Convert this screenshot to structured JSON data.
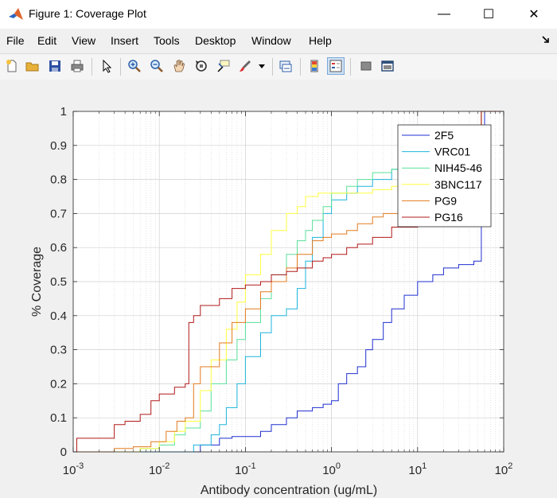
{
  "window": {
    "title": "Figure 1: Coverage Plot",
    "minimize": "—",
    "maximize": "☐",
    "close": "✕"
  },
  "menu": [
    "File",
    "Edit",
    "View",
    "Insert",
    "Tools",
    "Desktop",
    "Window",
    "Help"
  ],
  "toolbar_icons": [
    "new-figure-icon",
    "open-file-icon",
    "save-icon",
    "print-icon",
    "pointer-icon",
    "zoom-in-icon",
    "zoom-out-icon",
    "pan-icon",
    "rotate-3d-icon",
    "data-cursor-icon",
    "brush-icon",
    "link-plot-icon",
    "colorbar-icon",
    "legend-icon",
    "hide-plot-tools-icon",
    "show-plot-tools-icon"
  ],
  "chart_data": {
    "type": "line",
    "title": "",
    "xlabel": "Antibody concentration (ug/mL)",
    "ylabel": "% Coverage",
    "xscale": "log",
    "xlim": [
      0.001,
      100
    ],
    "ylim": [
      0,
      1
    ],
    "xticks": [
      {
        "value": 0.001,
        "base": "10",
        "exp": "-3"
      },
      {
        "value": 0.01,
        "base": "10",
        "exp": "-2"
      },
      {
        "value": 0.1,
        "base": "10",
        "exp": "-1"
      },
      {
        "value": 1,
        "base": "10",
        "exp": "0"
      },
      {
        "value": 10,
        "base": "10",
        "exp": "1"
      },
      {
        "value": 100,
        "base": "10",
        "exp": "2"
      }
    ],
    "yticks": [
      "0",
      "0.1",
      "0.2",
      "0.3",
      "0.4",
      "0.5",
      "0.6",
      "0.7",
      "0.8",
      "0.9",
      "1"
    ],
    "grid": true,
    "legend_position": "top-right",
    "series": [
      {
        "name": "2F5",
        "color": "#1f2fd0",
        "points": [
          [
            0.001,
            0
          ],
          [
            0.02,
            0
          ],
          [
            0.03,
            0.02
          ],
          [
            0.05,
            0.04
          ],
          [
            0.07,
            0.045
          ],
          [
            0.13,
            0.045
          ],
          [
            0.15,
            0.06
          ],
          [
            0.2,
            0.08
          ],
          [
            0.3,
            0.1
          ],
          [
            0.4,
            0.12
          ],
          [
            0.6,
            0.13
          ],
          [
            0.8,
            0.14
          ],
          [
            1.0,
            0.15
          ],
          [
            1.2,
            0.2
          ],
          [
            1.5,
            0.23
          ],
          [
            2,
            0.25
          ],
          [
            2.5,
            0.3
          ],
          [
            3,
            0.33
          ],
          [
            4,
            0.38
          ],
          [
            5,
            0.42
          ],
          [
            7,
            0.46
          ],
          [
            10,
            0.5
          ],
          [
            15,
            0.52
          ],
          [
            20,
            0.54
          ],
          [
            30,
            0.55
          ],
          [
            45,
            0.56
          ],
          [
            50,
            0.56
          ],
          [
            55,
            0.8
          ],
          [
            60,
            1
          ],
          [
            100,
            1
          ]
        ]
      },
      {
        "name": "VRC01",
        "color": "#1db4dc",
        "points": [
          [
            0.001,
            0
          ],
          [
            0.015,
            0
          ],
          [
            0.025,
            0.02
          ],
          [
            0.04,
            0.05
          ],
          [
            0.05,
            0.08
          ],
          [
            0.06,
            0.13
          ],
          [
            0.08,
            0.2
          ],
          [
            0.1,
            0.28
          ],
          [
            0.15,
            0.35
          ],
          [
            0.2,
            0.4
          ],
          [
            0.3,
            0.42
          ],
          [
            0.4,
            0.48
          ],
          [
            0.5,
            0.56
          ],
          [
            0.6,
            0.63
          ],
          [
            0.8,
            0.7
          ],
          [
            1,
            0.74
          ],
          [
            1.5,
            0.76
          ],
          [
            2,
            0.78
          ],
          [
            3,
            0.8
          ],
          [
            5,
            0.83
          ],
          [
            7,
            0.85
          ],
          [
            10,
            0.86
          ],
          [
            20,
            0.87
          ],
          [
            30,
            0.88
          ],
          [
            50,
            0.88
          ],
          [
            55,
            1
          ],
          [
            100,
            1
          ]
        ]
      },
      {
        "name": "NIH45-46",
        "color": "#58e09a",
        "points": [
          [
            0.001,
            0
          ],
          [
            0.004,
            0
          ],
          [
            0.006,
            0.01
          ],
          [
            0.01,
            0.02
          ],
          [
            0.015,
            0.05
          ],
          [
            0.02,
            0.07
          ],
          [
            0.03,
            0.12
          ],
          [
            0.04,
            0.2
          ],
          [
            0.06,
            0.27
          ],
          [
            0.08,
            0.33
          ],
          [
            0.1,
            0.38
          ],
          [
            0.15,
            0.45
          ],
          [
            0.2,
            0.52
          ],
          [
            0.3,
            0.58
          ],
          [
            0.4,
            0.62
          ],
          [
            0.5,
            0.65
          ],
          [
            0.6,
            0.68
          ],
          [
            0.8,
            0.72
          ],
          [
            1,
            0.76
          ],
          [
            1.5,
            0.78
          ],
          [
            2,
            0.8
          ],
          [
            3,
            0.82
          ],
          [
            5,
            0.83
          ],
          [
            10,
            0.84
          ],
          [
            20,
            0.84
          ],
          [
            50,
            0.85
          ],
          [
            55,
            1
          ],
          [
            100,
            1
          ]
        ]
      },
      {
        "name": "3BNC117",
        "color": "#ffff40",
        "points": [
          [
            0.001,
            0
          ],
          [
            0.004,
            0
          ],
          [
            0.006,
            0.01
          ],
          [
            0.01,
            0.03
          ],
          [
            0.015,
            0.06
          ],
          [
            0.02,
            0.09
          ],
          [
            0.03,
            0.18
          ],
          [
            0.04,
            0.27
          ],
          [
            0.06,
            0.36
          ],
          [
            0.08,
            0.44
          ],
          [
            0.1,
            0.52
          ],
          [
            0.15,
            0.58
          ],
          [
            0.2,
            0.65
          ],
          [
            0.3,
            0.7
          ],
          [
            0.4,
            0.72
          ],
          [
            0.5,
            0.75
          ],
          [
            0.7,
            0.76
          ],
          [
            1,
            0.76
          ],
          [
            2,
            0.76
          ],
          [
            3,
            0.77
          ],
          [
            5,
            0.78
          ],
          [
            10,
            0.78
          ],
          [
            20,
            0.78
          ],
          [
            50,
            0.78
          ],
          [
            55,
            1
          ],
          [
            100,
            1
          ]
        ]
      },
      {
        "name": "PG9",
        "color": "#e37a1e",
        "points": [
          [
            0.001,
            0
          ],
          [
            0.003,
            0.01
          ],
          [
            0.005,
            0.015
          ],
          [
            0.008,
            0.03
          ],
          [
            0.012,
            0.06
          ],
          [
            0.016,
            0.09
          ],
          [
            0.02,
            0.1
          ],
          [
            0.025,
            0.2
          ],
          [
            0.03,
            0.25
          ],
          [
            0.05,
            0.32
          ],
          [
            0.07,
            0.38
          ],
          [
            0.1,
            0.42
          ],
          [
            0.15,
            0.47
          ],
          [
            0.2,
            0.5
          ],
          [
            0.3,
            0.54
          ],
          [
            0.4,
            0.58
          ],
          [
            0.6,
            0.62
          ],
          [
            0.8,
            0.63
          ],
          [
            1,
            0.64
          ],
          [
            1.5,
            0.65
          ],
          [
            2,
            0.67
          ],
          [
            3,
            0.69
          ],
          [
            4,
            0.7
          ],
          [
            6,
            0.72
          ],
          [
            10,
            0.72
          ],
          [
            20,
            0.73
          ],
          [
            50,
            0.73
          ],
          [
            55,
            1
          ],
          [
            100,
            1
          ]
        ]
      },
      {
        "name": "PG16",
        "color": "#b01818",
        "points": [
          [
            0.001,
            0
          ],
          [
            0.0011,
            0.04
          ],
          [
            0.002,
            0.04
          ],
          [
            0.003,
            0.08
          ],
          [
            0.004,
            0.09
          ],
          [
            0.006,
            0.11
          ],
          [
            0.008,
            0.15
          ],
          [
            0.01,
            0.17
          ],
          [
            0.015,
            0.19
          ],
          [
            0.02,
            0.2
          ],
          [
            0.022,
            0.38
          ],
          [
            0.025,
            0.4
          ],
          [
            0.03,
            0.43
          ],
          [
            0.05,
            0.45
          ],
          [
            0.07,
            0.48
          ],
          [
            0.1,
            0.49
          ],
          [
            0.15,
            0.5
          ],
          [
            0.2,
            0.52
          ],
          [
            0.3,
            0.53
          ],
          [
            0.4,
            0.54
          ],
          [
            0.6,
            0.56
          ],
          [
            0.8,
            0.57
          ],
          [
            1,
            0.58
          ],
          [
            1.5,
            0.6
          ],
          [
            2,
            0.61
          ],
          [
            3,
            0.63
          ],
          [
            5,
            0.66
          ],
          [
            10,
            0.68
          ],
          [
            20,
            0.69
          ],
          [
            50,
            0.69
          ],
          [
            55,
            1
          ],
          [
            100,
            1
          ]
        ]
      }
    ]
  }
}
